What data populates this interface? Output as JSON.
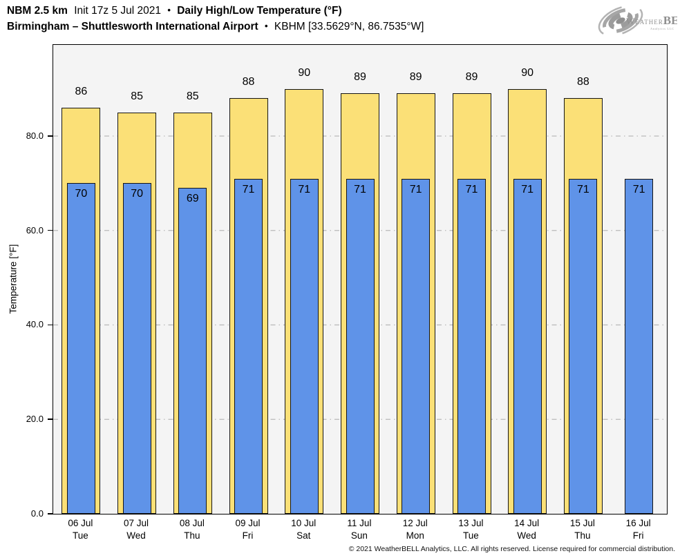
{
  "header": {
    "line1": {
      "model": "NBM 2.5 km",
      "init": "Init 17z 5 Jul 2021",
      "bullet": "•",
      "product": "Daily High/Low Temperature (°F)"
    },
    "line2": {
      "station": "Birmingham – Shuttlesworth International Airport",
      "bullet": "•",
      "station_id": "KBHM [33.5629°N, 86.7535°W]"
    }
  },
  "logo": {
    "weather": "Weather",
    "bell": "BELL",
    "sub": "Analytics LLC"
  },
  "chart_data": {
    "type": "bar",
    "title": "Daily High/Low Temperature (°F)",
    "ylabel": "Temperature [°F]",
    "ylim": [
      0,
      99.3
    ],
    "yticks": [
      {
        "value": 0,
        "label": "0.0"
      },
      {
        "value": 20,
        "label": "20.0"
      },
      {
        "value": 40,
        "label": "40.0"
      },
      {
        "value": 60,
        "label": "60.0"
      },
      {
        "value": 80,
        "label": "80.0"
      }
    ],
    "grid": {
      "horizontal": true,
      "style": "dash-dot",
      "color": "#b9b9b9",
      "at": [
        20,
        40,
        60,
        80
      ]
    },
    "legend": "none",
    "plot_background": "#f4f4f4",
    "categories": [
      {
        "date": "06 Jul",
        "dow": "Tue"
      },
      {
        "date": "07 Jul",
        "dow": "Wed"
      },
      {
        "date": "08 Jul",
        "dow": "Thu"
      },
      {
        "date": "09 Jul",
        "dow": "Fri"
      },
      {
        "date": "10 Jul",
        "dow": "Sat"
      },
      {
        "date": "11 Jul",
        "dow": "Sun"
      },
      {
        "date": "12 Jul",
        "dow": "Mon"
      },
      {
        "date": "13 Jul",
        "dow": "Tue"
      },
      {
        "date": "14 Jul",
        "dow": "Wed"
      },
      {
        "date": "15 Jul",
        "dow": "Thu"
      },
      {
        "date": "16 Jul",
        "dow": "Fri"
      }
    ],
    "series": [
      {
        "name": "Daily High",
        "color": "#fbe077",
        "values": [
          86,
          85,
          85,
          88,
          90,
          89,
          89,
          89,
          90,
          88,
          null
        ]
      },
      {
        "name": "Daily Low",
        "color": "#5f93e8",
        "values": [
          70,
          70,
          69,
          71,
          71,
          71,
          71,
          71,
          71,
          71,
          71
        ]
      }
    ]
  },
  "footer": {
    "copyright": "© 2021 WeatherBELL Analytics, LLC. All rights reserved. License required for commercial distribution."
  },
  "colors": {
    "high_bar": "#fbe077",
    "low_bar": "#5f93e8",
    "bar_border": "#141414",
    "plot_background": "#f4f4f4",
    "gridline": "#b9b9b9",
    "axis": "#000000"
  }
}
